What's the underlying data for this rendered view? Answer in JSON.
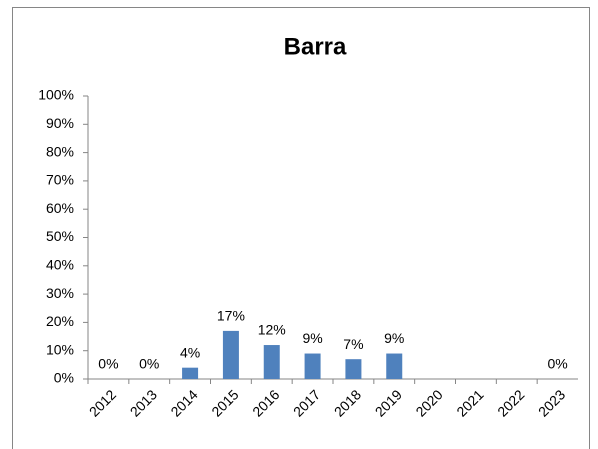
{
  "chart_data": {
    "type": "bar",
    "title": "Barra",
    "categories": [
      "2012",
      "2013",
      "2014",
      "2015",
      "2016",
      "2017",
      "2018",
      "2019",
      "2020",
      "2021",
      "2022",
      "2023"
    ],
    "values": [
      0,
      0,
      4,
      17,
      12,
      9,
      7,
      9,
      null,
      null,
      null,
      0
    ],
    "value_labels": [
      "0%",
      "0%",
      "4%",
      "17%",
      "12%",
      "9%",
      "7%",
      "9%",
      null,
      null,
      null,
      "0%"
    ],
    "color": "#4f81bd",
    "ylim": [
      0,
      100
    ],
    "yticks": [
      {
        "value": 0,
        "label": "0%"
      },
      {
        "value": 10,
        "label": "10%"
      },
      {
        "value": 20,
        "label": "20%"
      },
      {
        "value": 30,
        "label": "30%"
      },
      {
        "value": 40,
        "label": "40%"
      },
      {
        "value": 50,
        "label": "50%"
      },
      {
        "value": 60,
        "label": "60%"
      },
      {
        "value": 70,
        "label": "70%"
      },
      {
        "value": 80,
        "label": "80%"
      },
      {
        "value": 90,
        "label": "90%"
      },
      {
        "value": 100,
        "label": "100%"
      }
    ],
    "grid": false
  }
}
